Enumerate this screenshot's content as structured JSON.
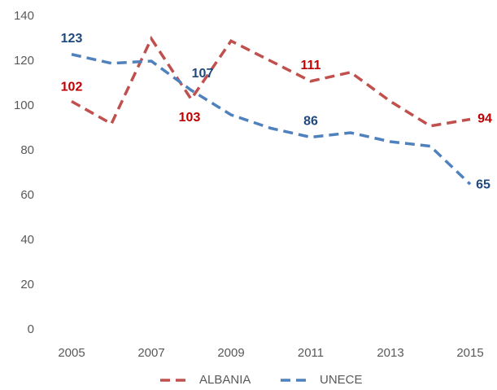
{
  "chart_data": {
    "type": "line",
    "categories": [
      "2005",
      null,
      "2007",
      null,
      "2009",
      null,
      "2011",
      null,
      "2013",
      null,
      "2015"
    ],
    "series": [
      {
        "name": "ALBANIA",
        "color": "#c0504d",
        "label_color": "#c00000",
        "values": [
          102,
          92,
          130,
          103,
          129,
          120,
          111,
          115,
          102,
          91,
          94
        ],
        "value_labels": [
          "102",
          null,
          null,
          "103",
          null,
          null,
          "111",
          null,
          null,
          null,
          "94"
        ]
      },
      {
        "name": "UNECE",
        "color": "#4f81bd",
        "label_color": "#1f497d",
        "values": [
          123,
          119,
          120,
          107,
          96,
          90,
          86,
          88,
          84,
          82,
          65
        ],
        "value_labels": [
          "123",
          null,
          null,
          "107",
          null,
          null,
          "86",
          null,
          null,
          null,
          "65"
        ]
      }
    ],
    "ylim": [
      0,
      140
    ],
    "yticks": [
      0,
      20,
      40,
      60,
      80,
      100,
      120,
      140
    ],
    "grid": false,
    "legend": "bottom"
  }
}
